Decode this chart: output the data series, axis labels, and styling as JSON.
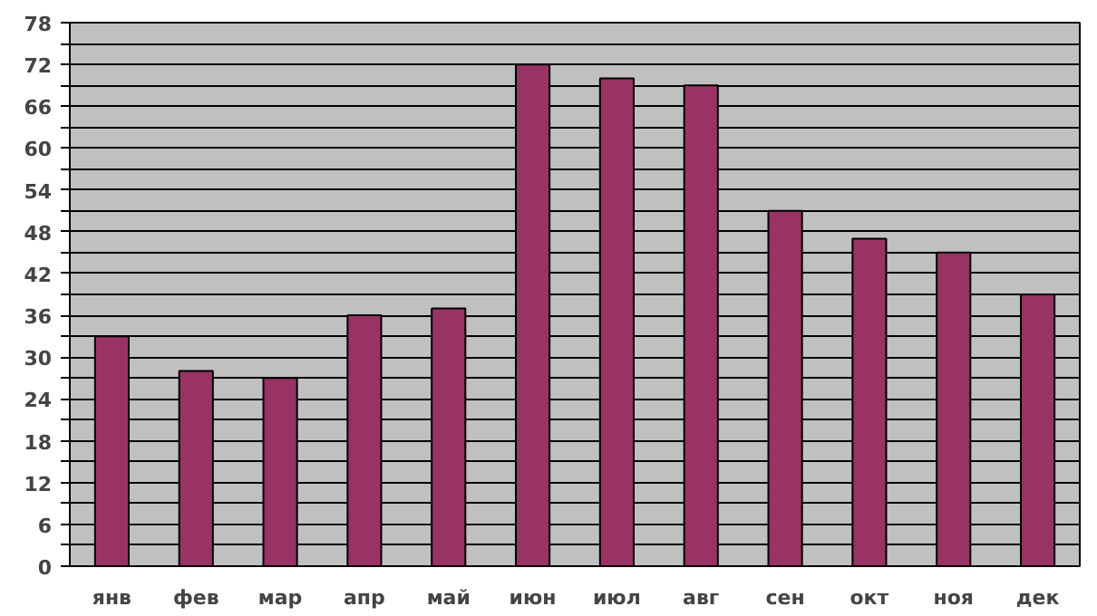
{
  "chart_data": {
    "type": "bar",
    "categories": [
      "янв",
      "фев",
      "мар",
      "апр",
      "май",
      "июн",
      "июл",
      "авг",
      "сен",
      "окт",
      "ноя",
      "дек"
    ],
    "values": [
      33,
      28,
      27,
      36,
      37,
      72,
      70,
      69,
      51,
      47,
      45,
      39
    ],
    "color": "#993366",
    "ylim": [
      0,
      78
    ],
    "yticks": [
      0,
      {
        "value": 3,
        "label": null
      },
      6,
      {
        "value": 9,
        "label": null
      },
      12,
      {
        "value": 15,
        "label": null
      },
      18,
      {
        "value": 21,
        "label": null
      },
      24,
      {
        "value": 27,
        "label": null
      },
      30,
      {
        "value": 33,
        "label": null
      },
      36,
      {
        "value": 39,
        "label": null
      },
      42,
      {
        "value": 45,
        "label": null
      },
      48,
      {
        "value": 51,
        "label": null
      },
      54,
      {
        "value": 57,
        "label": null
      },
      60,
      {
        "value": 63,
        "label": null
      },
      66,
      {
        "value": 69,
        "label": null
      },
      72,
      {
        "value": 75,
        "label": null
      },
      78
    ],
    "grid": "y"
  }
}
